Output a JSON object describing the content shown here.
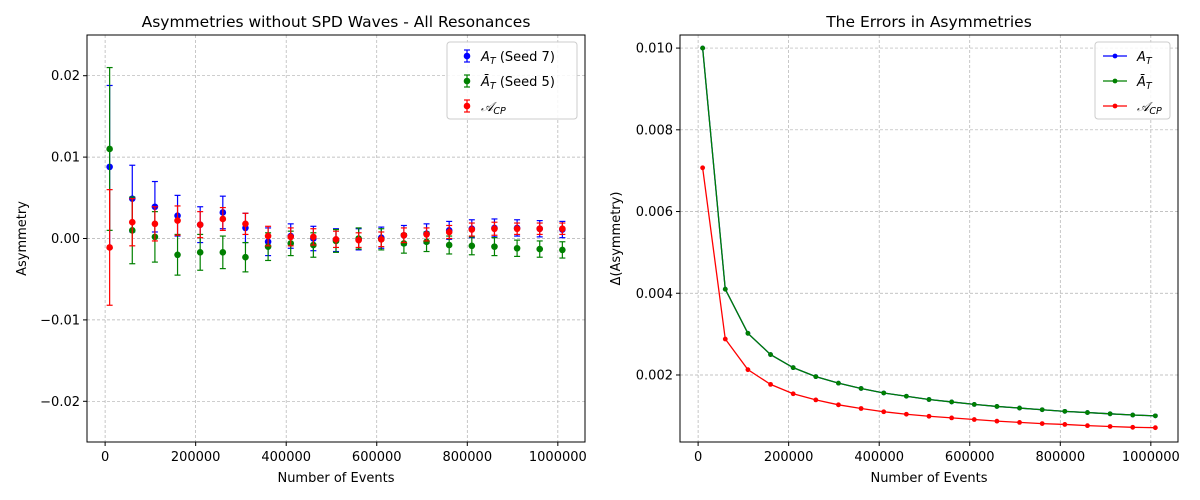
{
  "chart_data": [
    {
      "type": "scatter",
      "title": "Asymmetries without SPD Waves - All Resonances",
      "xlabel": "Number of Events",
      "ylabel": "Asymmetry",
      "xlim": [
        -40000,
        1060000
      ],
      "ylim": [
        -0.025,
        0.025
      ],
      "xticks": [
        0,
        200000,
        400000,
        600000,
        800000,
        1000000
      ],
      "xtick_labels": [
        "0",
        "200000",
        "400000",
        "600000",
        "800000",
        "1000000"
      ],
      "yticks": [
        -0.02,
        -0.01,
        0.0,
        0.01,
        0.02
      ],
      "ytick_labels": [
        "−0.02",
        "−0.01",
        "0.00",
        "0.01",
        "0.02"
      ],
      "grid": true,
      "legend_position": "top-right",
      "x": [
        10000,
        60000,
        110000,
        160000,
        210000,
        260000,
        310000,
        360000,
        410000,
        460000,
        510000,
        560000,
        610000,
        660000,
        710000,
        760000,
        810000,
        860000,
        910000,
        960000,
        1010000
      ],
      "series": [
        {
          "name": "A_T (Seed 7)",
          "legend_main": "A",
          "legend_sub": "T",
          "legend_rest": " (Seed 7)",
          "color": "#0000ff",
          "values": [
            0.0088,
            0.0049,
            0.0039,
            0.0028,
            0.0017,
            0.0032,
            0.0013,
            -0.0004,
            0.0003,
            0.0,
            -0.0002,
            -0.0001,
            0.0001,
            0.0004,
            0.0006,
            0.001,
            0.0012,
            0.0013,
            0.0013,
            0.0012,
            0.0011
          ],
          "errors": [
            0.01,
            0.0041,
            0.0031,
            0.0025,
            0.0022,
            0.002,
            0.0018,
            0.0017,
            0.0015,
            0.0015,
            0.0014,
            0.0013,
            0.0013,
            0.0012,
            0.0012,
            0.0011,
            0.0011,
            0.0011,
            0.001,
            0.001,
            0.001
          ]
        },
        {
          "name": "Ā_T (Seed 5)",
          "legend_main": "Ā",
          "legend_sub": "T",
          "legend_rest": " (Seed 5)",
          "color": "#008000",
          "values": [
            0.011,
            0.001,
            0.0002,
            -0.002,
            -0.0017,
            -0.0017,
            -0.0023,
            -0.001,
            -0.0006,
            -0.0008,
            -0.0003,
            0.0,
            -0.0001,
            -0.0006,
            -0.0004,
            -0.0008,
            -0.0009,
            -0.001,
            -0.0012,
            -0.0013,
            -0.0014
          ],
          "errors": [
            0.01,
            0.0041,
            0.0031,
            0.0025,
            0.0022,
            0.002,
            0.0018,
            0.0017,
            0.0015,
            0.0015,
            0.0014,
            0.0013,
            0.0013,
            0.0012,
            0.0012,
            0.0011,
            0.0011,
            0.0011,
            0.001,
            0.001,
            0.001
          ]
        },
        {
          "name": "𝒜_CP",
          "legend_main": "𝒜",
          "legend_sub": "CP",
          "legend_rest": "",
          "color": "#ff0000",
          "values": [
            -0.0011,
            0.002,
            0.0018,
            0.0022,
            0.0017,
            0.0024,
            0.0018,
            0.0003,
            0.0002,
            0.0002,
            -0.0001,
            -0.0002,
            -0.0001,
            0.0004,
            0.0005,
            0.0008,
            0.0011,
            0.0012,
            0.0012,
            0.0012,
            0.0012
          ],
          "errors": [
            0.0071,
            0.0029,
            0.0021,
            0.0018,
            0.0016,
            0.0014,
            0.0013,
            0.0012,
            0.0011,
            0.001,
            0.001,
            0.0009,
            0.0009,
            0.0009,
            0.0008,
            0.0008,
            0.0008,
            0.0008,
            0.0007,
            0.0007,
            0.0007
          ]
        }
      ]
    },
    {
      "type": "line",
      "title": "The Errors in Asymmetries",
      "xlabel": "Number of Events",
      "ylabel": "Δ(Asymmetry)",
      "xlim": [
        -40000,
        1060000
      ],
      "ylim": [
        0.00036,
        0.01032
      ],
      "xticks": [
        0,
        200000,
        400000,
        600000,
        800000,
        1000000
      ],
      "xtick_labels": [
        "0",
        "200000",
        "400000",
        "600000",
        "800000",
        "1000000"
      ],
      "yticks": [
        0.002,
        0.004,
        0.006,
        0.008,
        0.01
      ],
      "ytick_labels": [
        "0.002",
        "0.004",
        "0.006",
        "0.008",
        "0.010"
      ],
      "grid": true,
      "legend_position": "top-right",
      "x": [
        10000,
        60000,
        110000,
        160000,
        210000,
        260000,
        310000,
        360000,
        410000,
        460000,
        510000,
        560000,
        610000,
        660000,
        710000,
        760000,
        810000,
        860000,
        910000,
        960000,
        1010000
      ],
      "series": [
        {
          "name": "A_T",
          "legend_main": "A",
          "legend_sub": "T",
          "legend_rest": "",
          "color": "#0000ff",
          "values": [
            0.01,
            0.0041,
            0.00302,
            0.0025,
            0.00218,
            0.00196,
            0.0018,
            0.00167,
            0.00156,
            0.00148,
            0.0014,
            0.00134,
            0.00128,
            0.00123,
            0.00119,
            0.00115,
            0.00111,
            0.00108,
            0.00105,
            0.00102,
            0.001
          ]
        },
        {
          "name": "Ā_T",
          "legend_main": "Ā",
          "legend_sub": "T",
          "legend_rest": "",
          "color": "#008000",
          "values": [
            0.01,
            0.0041,
            0.00302,
            0.0025,
            0.00218,
            0.00196,
            0.0018,
            0.00167,
            0.00156,
            0.00148,
            0.0014,
            0.00134,
            0.00128,
            0.00123,
            0.00119,
            0.00115,
            0.00111,
            0.00108,
            0.00105,
            0.00102,
            0.001
          ]
        },
        {
          "name": "𝒜_CP",
          "legend_main": "𝒜",
          "legend_sub": "CP",
          "legend_rest": "",
          "color": "#ff0000",
          "values": [
            0.00707,
            0.00288,
            0.00213,
            0.00177,
            0.00154,
            0.00139,
            0.00127,
            0.00118,
            0.0011,
            0.00104,
            0.00099,
            0.00095,
            0.00091,
            0.00087,
            0.00084,
            0.00081,
            0.00079,
            0.00076,
            0.00074,
            0.00072,
            0.00071
          ]
        }
      ]
    }
  ]
}
